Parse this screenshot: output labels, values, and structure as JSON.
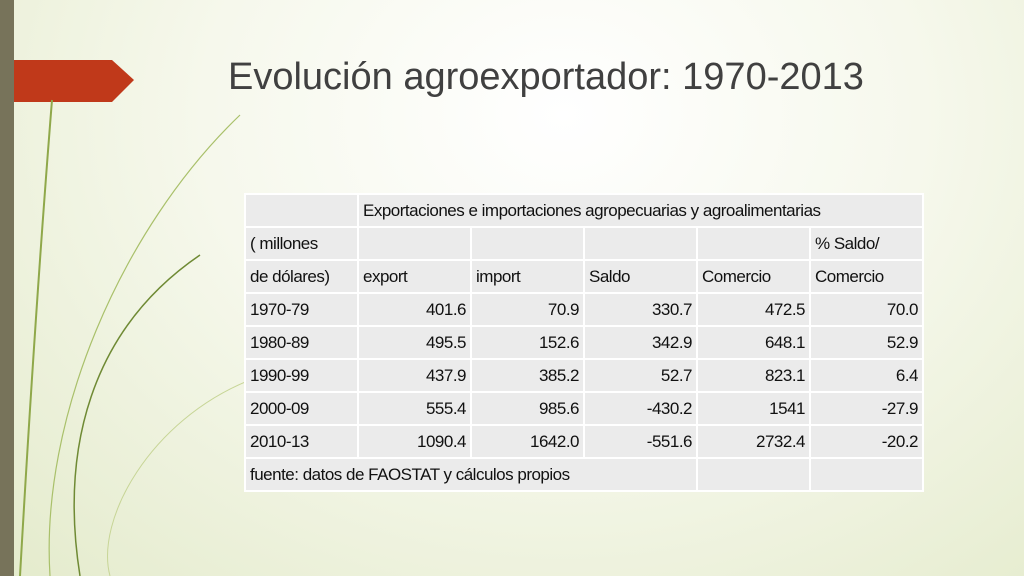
{
  "title": "Evolución agroexportador: 1970-2013",
  "table": {
    "group_header": "Exportaciones e importaciones agropecuarias y agroalimentarias",
    "unit_header": [
      "( millones",
      "de dólares)"
    ],
    "ratio_header": "% Saldo/",
    "columns": [
      "export",
      "import",
      "Saldo",
      "Comercio",
      "Comercio"
    ],
    "rows": [
      [
        "1970-79",
        "401.6",
        "70.9",
        "330.7",
        "472.5",
        "70.0"
      ],
      [
        "1980-89",
        "495.5",
        "152.6",
        "342.9",
        "648.1",
        "52.9"
      ],
      [
        "1990-99",
        "437.9",
        "385.2",
        "52.7",
        "823.1",
        "6.4"
      ],
      [
        "2000-09",
        "555.4",
        "985.6",
        "-430.2",
        "1541",
        "-27.9"
      ],
      [
        "2010-13",
        "1090.4",
        "1642.0",
        "-551.6",
        "2732.4",
        "-20.2"
      ]
    ],
    "source": "fuente: datos de FAOSTAT y cálculos propios"
  }
}
